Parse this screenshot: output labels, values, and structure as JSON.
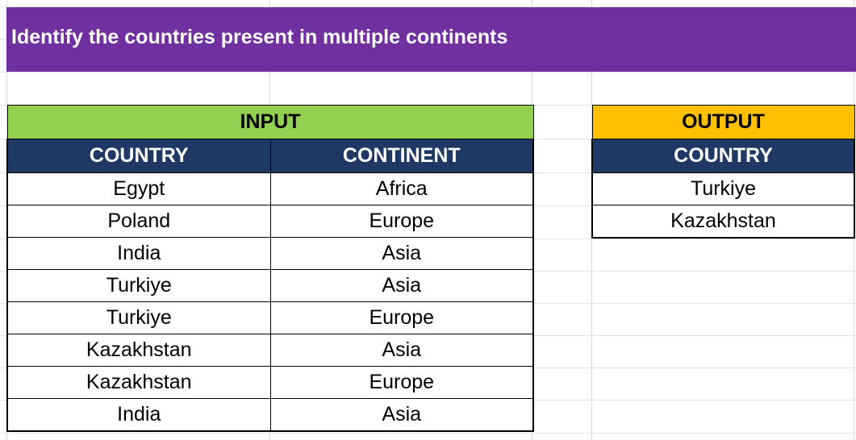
{
  "sheet": {
    "title": "Identify the countries present in multiple continents",
    "colors": {
      "title_bg": "#7030a0",
      "input_banner": "#92d050",
      "output_banner": "#ffc000",
      "header_bg": "#1f3864"
    }
  },
  "input": {
    "banner": "INPUT",
    "columns": [
      "COUNTRY",
      "CONTINENT"
    ],
    "rows": [
      [
        "Egypt",
        "Africa"
      ],
      [
        "Poland",
        "Europe"
      ],
      [
        "India",
        "Asia"
      ],
      [
        "Turkiye",
        "Asia"
      ],
      [
        "Turkiye",
        "Europe"
      ],
      [
        "Kazakhstan",
        "Asia"
      ],
      [
        "Kazakhstan",
        "Europe"
      ],
      [
        "India",
        "Asia"
      ]
    ]
  },
  "output": {
    "banner": "OUTPUT",
    "columns": [
      "COUNTRY"
    ],
    "rows": [
      [
        "Turkiye"
      ],
      [
        "Kazakhstan"
      ]
    ]
  }
}
